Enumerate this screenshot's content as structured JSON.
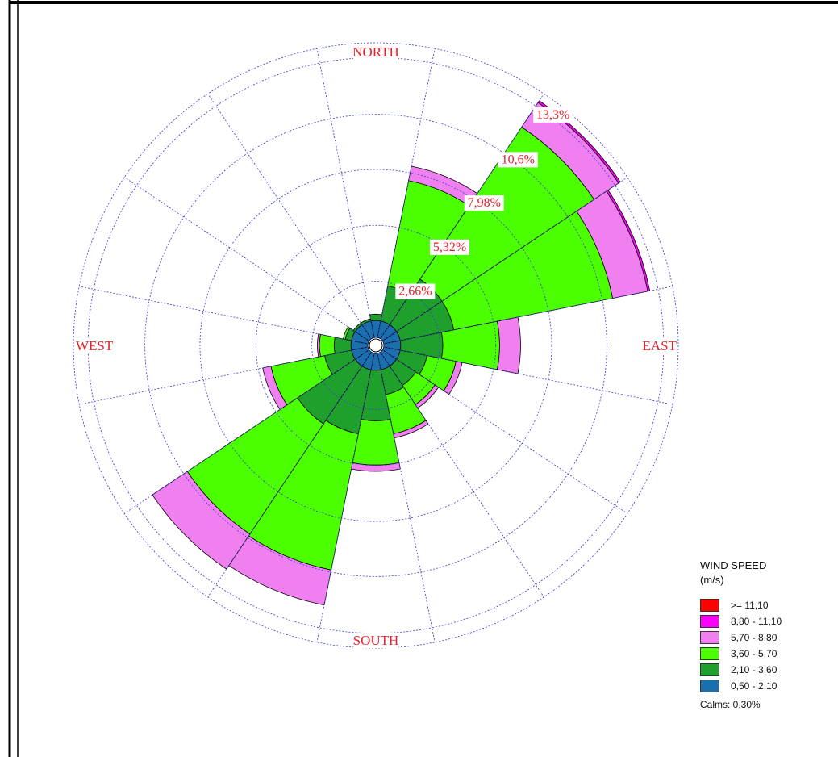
{
  "chart_data": {
    "type": "wind-rose",
    "direction_labels": [
      "NORTH",
      "EAST",
      "SOUTH",
      "WEST"
    ],
    "ring_labels": [
      "2,66%",
      "5,32%",
      "7,98%",
      "10,6%",
      "13,3%"
    ],
    "ring_values": [
      2.66,
      5.32,
      7.98,
      10.6,
      13.3
    ],
    "sector_count": 16,
    "sectors": [
      "N",
      "NNE",
      "NE",
      "ENE",
      "E",
      "ESE",
      "SE",
      "SSE",
      "S",
      "SSW",
      "SW",
      "WSW",
      "W",
      "WNW",
      "NW",
      "NNW"
    ],
    "speed_bins": [
      {
        "label": "0,50 - 2,10",
        "color": "#1a6fad"
      },
      {
        "label": "2,10 - 3,60",
        "color": "#1fa02c"
      },
      {
        "label": "3,60 - 5,70",
        "color": "#4cff00"
      },
      {
        "label": "5,70 - 8,80",
        "color": "#f080f0"
      },
      {
        "label": "8,80 - 11,10",
        "color": "#ff00ff"
      },
      {
        "label": ">= 11,10",
        "color": "#ff0000"
      }
    ],
    "cumulative_percent": [
      [
        0.8,
        1.1,
        1.1,
        1.1,
        1.1,
        1.1
      ],
      [
        0.8,
        2.5,
        7.6,
        8.3,
        8.3,
        8.3
      ],
      [
        0.8,
        3.4,
        12.1,
        13.5,
        13.6,
        13.6
      ],
      [
        0.8,
        3.4,
        11.1,
        12.8,
        12.9,
        12.9
      ],
      [
        0.8,
        2.8,
        5.5,
        6.5,
        6.5,
        6.5
      ],
      [
        0.8,
        2.1,
        3.5,
        3.8,
        3.8,
        3.8
      ],
      [
        0.8,
        1.9,
        3.0,
        3.2,
        3.2,
        3.2
      ],
      [
        0.8,
        2.0,
        3.9,
        4.1,
        4.1,
        4.1
      ],
      [
        0.8,
        3.2,
        5.3,
        5.6,
        5.6,
        5.6
      ],
      [
        0.8,
        3.9,
        10.5,
        12.2,
        12.2,
        12.2
      ],
      [
        0.8,
        4.1,
        10.4,
        12.4,
        12.4,
        12.4
      ],
      [
        0.8,
        2.1,
        4.7,
        5.1,
        5.1,
        5.1
      ],
      [
        0.8,
        1.6,
        2.3,
        2.4,
        2.4,
        2.4
      ],
      [
        0.8,
        1.1,
        1.2,
        1.2,
        1.2,
        1.2
      ],
      [
        0.8,
        0.9,
        0.9,
        0.9,
        0.9,
        0.9
      ],
      [
        0.8,
        0.9,
        0.9,
        0.9,
        0.9,
        0.9
      ]
    ],
    "grid": true
  },
  "legend": {
    "title": "WIND SPEED",
    "unit": "(m/s)",
    "items": [
      {
        "label": ">= 11,10",
        "color": "#ff0000"
      },
      {
        "label": "8,80 - 11,10",
        "color": "#ff00ff"
      },
      {
        "label": "5,70 - 8,80",
        "color": "#f080f0"
      },
      {
        "label": "3,60 - 5,70",
        "color": "#4cff00"
      },
      {
        "label": "2,10 - 3,60",
        "color": "#1fa02c"
      },
      {
        "label": "0,50 - 2,10",
        "color": "#1a6fad"
      }
    ],
    "calms": "Calms: 0,30%"
  },
  "colors": {
    "grid": "#3b3bd6",
    "label": "#e8202a",
    "frame": "#000000"
  }
}
